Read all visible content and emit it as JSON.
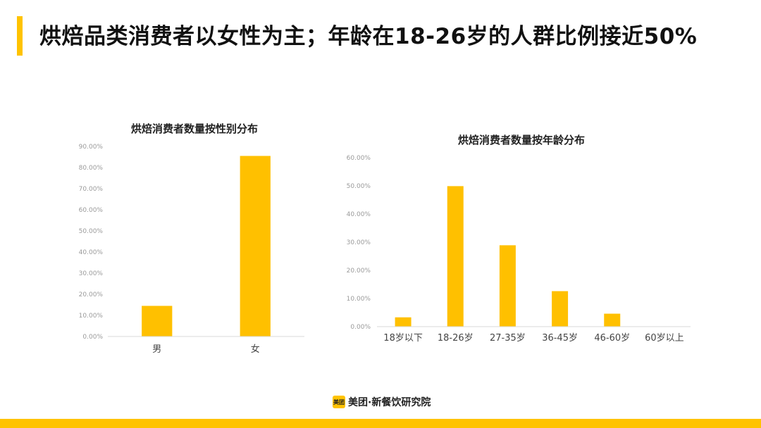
{
  "slide": {
    "title": "烘焙品类消费者以女性为主；年龄在18-26岁的人群比例接近50%"
  },
  "footer": {
    "logo_text": "美团",
    "brand_text": "美团·新餐饮研究院"
  },
  "colors": {
    "accent": "#FFC300",
    "bar": "#FFC000",
    "axis": "#D9D9D9"
  },
  "chart_data": [
    {
      "type": "bar",
      "title": "烘焙消费者数量按性别分布",
      "categories": [
        "男",
        "女"
      ],
      "values": [
        14.5,
        85.5
      ],
      "ylim": [
        0,
        90
      ],
      "ytick_step": 10,
      "ytick_labels": [
        "0.00%",
        "10.00%",
        "20.00%",
        "30.00%",
        "40.00%",
        "50.00%",
        "60.00%",
        "70.00%",
        "80.00%",
        "90.00%"
      ],
      "xlabel": "",
      "ylabel": "",
      "grid": false,
      "legend": "none"
    },
    {
      "type": "bar",
      "title": "烘焙消费者数量按年龄分布",
      "categories": [
        "18岁以下",
        "18-26岁",
        "27-35岁",
        "36-45岁",
        "46-60岁",
        "60岁以上"
      ],
      "values": [
        3.3,
        49.9,
        28.9,
        12.6,
        4.6,
        0.1
      ],
      "ylim": [
        0,
        60
      ],
      "ytick_step": 10,
      "ytick_labels": [
        "0.00%",
        "10.00%",
        "20.00%",
        "30.00%",
        "40.00%",
        "50.00%",
        "60.00%"
      ],
      "xlabel": "",
      "ylabel": "",
      "grid": false,
      "legend": "none"
    }
  ]
}
